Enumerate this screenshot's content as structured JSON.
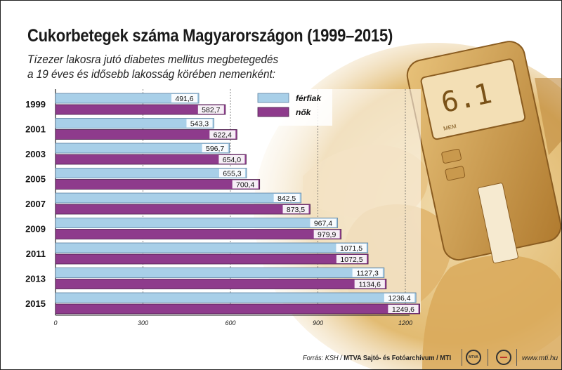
{
  "title": "Cukorbetegek száma Magyarországon (1999–2015)",
  "subtitle_line1": "Tízezer lakosra jutó diabetes mellitus megbetegedés",
  "subtitle_line2": "a 19 éves és idősebb lakosság körében nemenként:",
  "source_prefix": "Forrás: KSH / ",
  "source_agency": "MTVA Sajtó- és Fotóarchívum / MTI",
  "logo_text": "MTVA",
  "website": "www.mti.hu",
  "colors": {
    "men": "#a8cfe8",
    "women": "#8e3b8c",
    "men_border": "#5a7fa0",
    "women_border": "#4a1f49"
  },
  "chart_data": {
    "type": "bar",
    "orientation": "horizontal",
    "categories": [
      "1999",
      "2001",
      "2003",
      "2005",
      "2007",
      "2009",
      "2011",
      "2013",
      "2015"
    ],
    "series": [
      {
        "name": "férfiak",
        "values": [
          491.6,
          543.3,
          596.7,
          655.3,
          842.5,
          967.4,
          1071.5,
          1127.3,
          1236.4
        ],
        "labels": [
          "491,6",
          "543,3",
          "596,7",
          "655,3",
          "842,5",
          "967,4",
          "1071,5",
          "1127,3",
          "1236,4"
        ]
      },
      {
        "name": "nők",
        "values": [
          582.7,
          622.4,
          654.0,
          700.4,
          873.5,
          979.9,
          1072.5,
          1134.6,
          1249.6
        ],
        "labels": [
          "582,7",
          "622,4",
          "654,0",
          "700,4",
          "873,5",
          "979,9",
          "1072,5",
          "1134,6",
          "1249,6"
        ]
      }
    ],
    "xticks": [
      0,
      300,
      600,
      900,
      1200
    ],
    "xlim": [
      0,
      1300
    ],
    "grid": true,
    "legend_position": "top-right"
  }
}
